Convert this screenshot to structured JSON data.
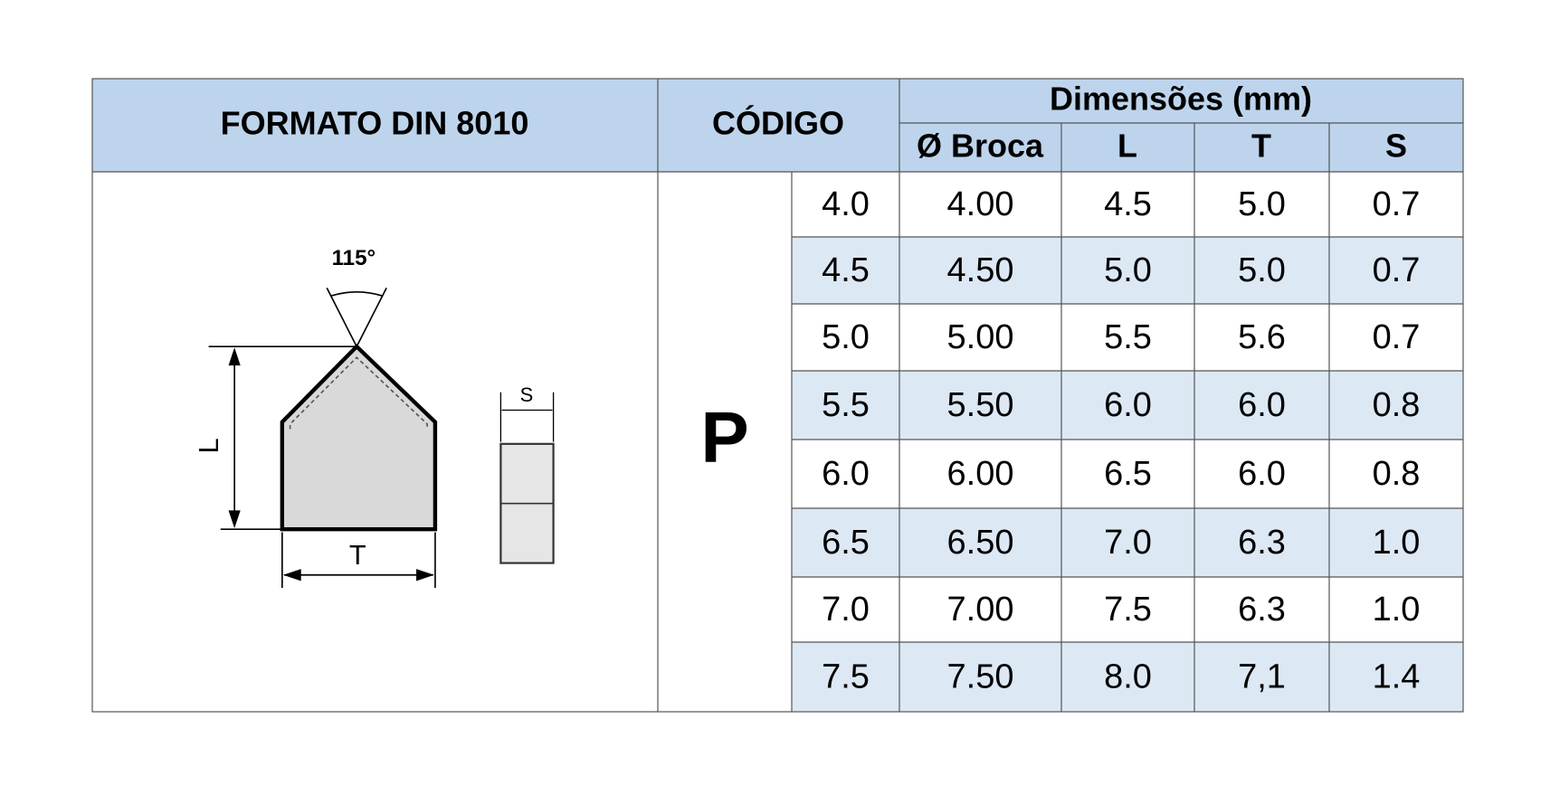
{
  "header": {
    "format": "FORMATO DIN 8010",
    "code": "CÓDIGO",
    "dimensions": "Dimensões (mm)",
    "columns": [
      "Ø Broca",
      "L",
      "T",
      "S"
    ]
  },
  "diagram": {
    "angle": "115°",
    "length": "L",
    "thickness": "T",
    "side": "S"
  },
  "table": {
    "code_letter": "P",
    "rows": [
      [
        "4.0",
        "4.00",
        "4.5",
        "5.0",
        "0.7"
      ],
      [
        "4.5",
        "4.50",
        "5.0",
        "5.0",
        "0.7"
      ],
      [
        "5.0",
        "5.00",
        "5.5",
        "5.6",
        "0.7"
      ],
      [
        "5.5",
        "5.50",
        "6.0",
        "6.0",
        "0.8"
      ],
      [
        "6.0",
        "6.00",
        "6.5",
        "6.0",
        "0.8"
      ],
      [
        "6.5",
        "6.50",
        "7.0",
        "6.3",
        "1.0"
      ],
      [
        "7.0",
        "7.00",
        "7.5",
        "6.3",
        "1.0"
      ],
      [
        "7.5",
        "7.50",
        "8.0",
        "7,1",
        "1.4"
      ]
    ]
  }
}
